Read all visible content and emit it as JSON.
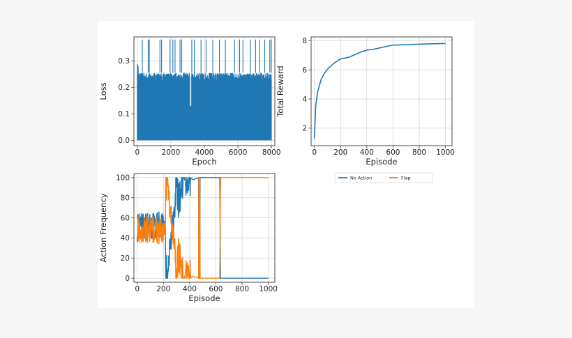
{
  "chart_data": [
    {
      "id": "loss",
      "type": "line",
      "xlabel": "Epoch",
      "ylabel": "Loss",
      "xlim": [
        -200,
        8200
      ],
      "ylim": [
        -0.02,
        0.39
      ],
      "xticks": [
        0,
        2000,
        4000,
        6000,
        8000
      ],
      "yticks": [
        0.0,
        0.1,
        0.2,
        0.3
      ],
      "grid": true,
      "series": [
        {
          "color": "#1f77b4",
          "description": "dense spikes between ~0 and ~0.255 over epochs 0-8000, occasional spikes to ~0.38",
          "band_low": 0.0,
          "band_high": 0.255,
          "peak_value": 0.38,
          "early_peak": {
            "x": 20,
            "y": 0.29
          },
          "peak_epochs": [
            300,
            650,
            720,
            1350,
            1450,
            1950,
            2120,
            2250,
            2550,
            2650,
            3250,
            3400,
            3800,
            4100,
            4500,
            4900,
            5250,
            5800,
            6100,
            6300,
            6750,
            7050,
            7300,
            7600,
            7900,
            7990
          ]
        }
      ]
    },
    {
      "id": "reward",
      "type": "line",
      "xlabel": "Episode",
      "ylabel": "Total Reward",
      "xlim": [
        -25,
        1050
      ],
      "ylim": [
        0.8,
        8.25
      ],
      "xticks": [
        0,
        200,
        400,
        600,
        800,
        1000
      ],
      "yticks": [
        2,
        4,
        6,
        8
      ],
      "grid": true,
      "series": [
        {
          "color": "#1f77b4",
          "x": [
            0,
            10,
            25,
            50,
            75,
            100,
            150,
            200,
            230,
            260,
            300,
            350,
            400,
            450,
            500,
            550,
            600,
            640,
            700,
            800,
            900,
            1000
          ],
          "y": [
            1.3,
            3.5,
            4.5,
            5.3,
            5.75,
            6.05,
            6.45,
            6.75,
            6.8,
            6.85,
            7.0,
            7.2,
            7.35,
            7.4,
            7.5,
            7.6,
            7.7,
            7.7,
            7.72,
            7.75,
            7.78,
            7.8
          ]
        }
      ]
    },
    {
      "id": "actions",
      "type": "line",
      "xlabel": "Episode",
      "ylabel": "Action Frequency",
      "xlim": [
        -25,
        1050
      ],
      "ylim": [
        -4,
        104
      ],
      "xticks": [
        0,
        200,
        400,
        600,
        800,
        1000
      ],
      "yticks": [
        0,
        20,
        40,
        60,
        80,
        100
      ],
      "grid": true,
      "series": [
        {
          "name": "No Action",
          "color": "#1f77b4",
          "description": "oscillates 40-65 for episodes 0-215, near 0 around 215-280, noisy rise to 100 by ~400, 100 until ~630, then 0 to episode 1000",
          "x": [
            0,
            215,
            218,
            240,
            260,
            280,
            300,
            320,
            340,
            360,
            380,
            400,
            430,
            470,
            480,
            630,
            635,
            1000
          ],
          "y": [
            50,
            55,
            5,
            15,
            40,
            70,
            90,
            75,
            95,
            100,
            98,
            100,
            98,
            100,
            100,
            100,
            0,
            0
          ]
        },
        {
          "name": "Flap",
          "color": "#ff7f0e",
          "description": "complement of No Action: oscillates 35-60 for episodes 0-215, 100 around 215-280, noisy drop to 0 by ~400, 0 until ~630, then 100 to episode 1000",
          "x": [
            0,
            215,
            218,
            240,
            260,
            280,
            300,
            320,
            340,
            360,
            380,
            400,
            430,
            470,
            480,
            630,
            635,
            1000
          ],
          "y": [
            50,
            45,
            95,
            85,
            60,
            30,
            10,
            25,
            5,
            0,
            2,
            0,
            2,
            0,
            0,
            0,
            100,
            100
          ]
        }
      ]
    }
  ],
  "legend": {
    "placement": "below-right",
    "entries": [
      {
        "label": "No Action",
        "color": "#1f77b4"
      },
      {
        "label": "Flap",
        "color": "#ff7f0e"
      }
    ]
  }
}
